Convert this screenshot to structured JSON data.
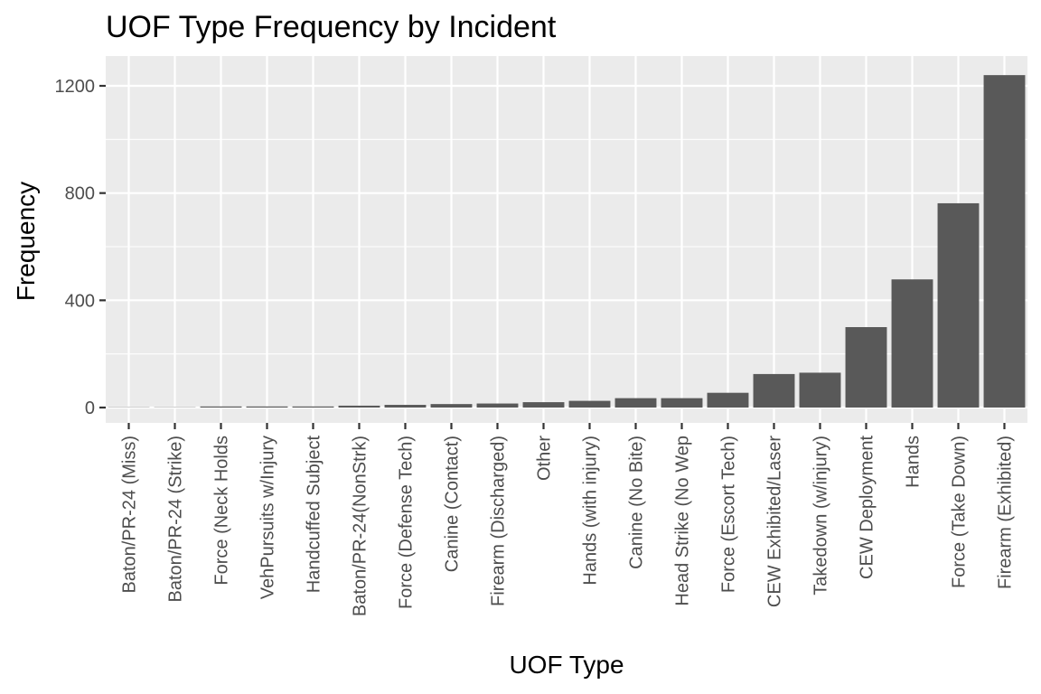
{
  "chart_data": {
    "type": "bar",
    "title": "UOF Type Frequency by Incident",
    "xlabel": "UOF Type",
    "ylabel": "Frequency",
    "categories": [
      "Baton/PR-24 (Miss)",
      "Baton/PR-24 (Strike)",
      "Force (Neck Holds",
      "VehPursuits w/Injury",
      "Handcuffed Subject",
      "Baton/PR-24(NonStrk)",
      "Force (Defense Tech)",
      "Canine (Contact)",
      "Firearm (Discharged)",
      "Other",
      "Hands (with injury)",
      "Canine (No Bite)",
      "Head Strike (No Wep",
      "Force (Escort Tech)",
      "CEW Exhibited/Laser",
      "Takedown (w/injury)",
      "CEW Deployment",
      "Hands",
      "Force (Take Down)",
      "Firearm (Exhibited)"
    ],
    "values": [
      1,
      1,
      4,
      4,
      4,
      7,
      10,
      13,
      15,
      20,
      25,
      35,
      35,
      55,
      125,
      130,
      300,
      478,
      762,
      1240
    ],
    "yticks": [
      0,
      400,
      800,
      1200
    ],
    "ylim": [
      -62,
      1302
    ],
    "grid": true,
    "legend": "none",
    "colors": {
      "panel": "#ebebeb",
      "grid": "#ffffff",
      "bar": "#595959",
      "tick_text": "#4d4d4d",
      "tick_mark": "#333333"
    }
  }
}
